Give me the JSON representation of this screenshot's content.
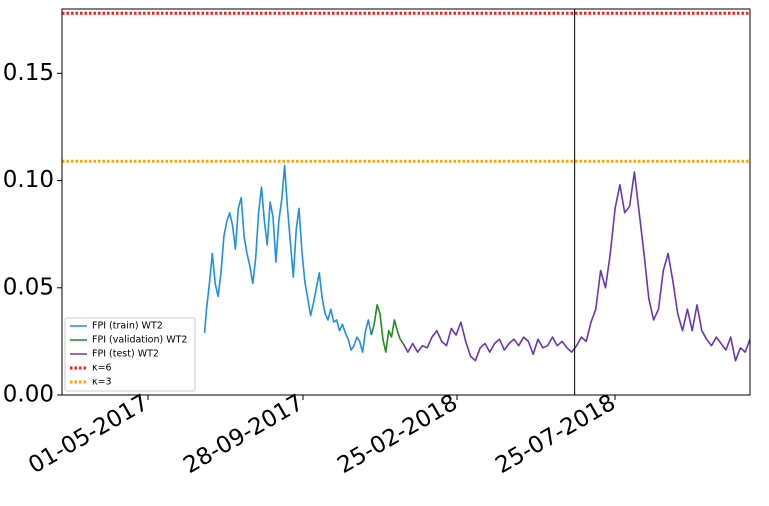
{
  "chart_data": {
    "type": "line",
    "title": "",
    "xlabel": "",
    "ylabel": "",
    "x_tick_labels": [
      "01-05-2017",
      "28-09-2017",
      "25-02-2018",
      "25-07-2018"
    ],
    "y_tick_labels": [
      "0.00",
      "0.05",
      "0.10",
      "0.15"
    ],
    "y_ticks": [
      0.0,
      0.05,
      0.1,
      0.15
    ],
    "ylim": [
      0.0,
      0.18
    ],
    "xlim": [
      "2017-01-08",
      "2018-12-23"
    ],
    "grid": false,
    "legend_position": "bottom-left",
    "vertical_marker": "2018-06-24",
    "series": [
      {
        "name": "FPI (train) WT2",
        "color": "#1f8fe0",
        "style": "solid",
        "x": [
          "2017-06-05",
          "2017-06-07",
          "2017-06-10",
          "2017-06-13",
          "2017-06-16",
          "2017-06-19",
          "2017-06-22",
          "2017-06-25",
          "2017-06-28",
          "2017-07-01",
          "2017-07-04",
          "2017-07-07",
          "2017-07-10",
          "2017-07-13",
          "2017-07-16",
          "2017-07-19",
          "2017-07-22",
          "2017-07-25",
          "2017-07-28",
          "2017-07-31",
          "2017-08-03",
          "2017-08-06",
          "2017-08-09",
          "2017-08-12",
          "2017-08-15",
          "2017-08-18",
          "2017-08-21",
          "2017-08-24",
          "2017-08-27",
          "2017-08-30",
          "2017-09-02",
          "2017-09-05",
          "2017-09-08",
          "2017-09-11",
          "2017-09-14",
          "2017-09-17",
          "2017-09-20",
          "2017-09-23",
          "2017-09-26",
          "2017-09-29",
          "2017-10-02",
          "2017-10-05",
          "2017-10-08",
          "2017-10-11",
          "2017-10-14",
          "2017-10-17",
          "2017-10-20",
          "2017-10-23",
          "2017-10-26",
          "2017-10-29",
          "2017-11-01",
          "2017-11-04",
          "2017-11-07",
          "2017-11-10",
          "2017-11-13",
          "2017-11-16",
          "2017-11-19",
          "2017-11-22",
          "2017-11-25"
        ],
        "y": [
          0.029,
          0.04,
          0.052,
          0.066,
          0.052,
          0.046,
          0.057,
          0.074,
          0.081,
          0.085,
          0.079,
          0.068,
          0.087,
          0.092,
          0.074,
          0.066,
          0.06,
          0.052,
          0.064,
          0.085,
          0.097,
          0.081,
          0.07,
          0.09,
          0.083,
          0.062,
          0.081,
          0.091,
          0.107,
          0.087,
          0.071,
          0.055,
          0.077,
          0.087,
          0.067,
          0.053,
          0.045,
          0.037,
          0.043,
          0.05,
          0.057,
          0.045,
          0.038,
          0.035,
          0.04,
          0.034,
          0.035,
          0.03,
          0.033,
          0.029,
          0.026,
          0.021,
          0.023,
          0.027,
          0.025,
          0.02,
          0.03,
          0.035,
          0.028
        ]
      },
      {
        "name": "FPI (validation) WT2",
        "color": "#228b22",
        "style": "solid",
        "x": [
          "2017-11-25",
          "2017-11-28",
          "2017-12-01",
          "2017-12-04",
          "2017-12-07",
          "2017-12-10",
          "2017-12-13",
          "2017-12-16",
          "2017-12-19",
          "2017-12-22",
          "2017-12-25",
          "2017-12-28"
        ],
        "y": [
          0.028,
          0.033,
          0.042,
          0.038,
          0.026,
          0.02,
          0.03,
          0.027,
          0.035,
          0.03,
          0.026,
          0.024
        ]
      },
      {
        "name": "FPI (test) WT2",
        "color": "#6a35b0",
        "style": "solid",
        "x": [
          "2017-12-28",
          "2018-01-02",
          "2018-01-07",
          "2018-01-12",
          "2018-01-17",
          "2018-01-22",
          "2018-01-27",
          "2018-02-01",
          "2018-02-06",
          "2018-02-11",
          "2018-02-16",
          "2018-02-21",
          "2018-02-26",
          "2018-03-03",
          "2018-03-08",
          "2018-03-13",
          "2018-03-18",
          "2018-03-23",
          "2018-03-28",
          "2018-04-02",
          "2018-04-07",
          "2018-04-12",
          "2018-04-17",
          "2018-04-22",
          "2018-04-27",
          "2018-05-02",
          "2018-05-07",
          "2018-05-12",
          "2018-05-17",
          "2018-05-22",
          "2018-05-27",
          "2018-06-01",
          "2018-06-06",
          "2018-06-11",
          "2018-06-16",
          "2018-06-21",
          "2018-06-26",
          "2018-07-01",
          "2018-07-06",
          "2018-07-11",
          "2018-07-16",
          "2018-07-21",
          "2018-07-26",
          "2018-07-31",
          "2018-08-05",
          "2018-08-10",
          "2018-08-15",
          "2018-08-20",
          "2018-08-25",
          "2018-08-30",
          "2018-09-04",
          "2018-09-09",
          "2018-09-14",
          "2018-09-19",
          "2018-09-24",
          "2018-09-29",
          "2018-10-04",
          "2018-10-09",
          "2018-10-14",
          "2018-10-19",
          "2018-10-24",
          "2018-10-29",
          "2018-11-03",
          "2018-11-08",
          "2018-11-13",
          "2018-11-18",
          "2018-11-23",
          "2018-11-28",
          "2018-12-03",
          "2018-12-08",
          "2018-12-13",
          "2018-12-18",
          "2018-12-23"
        ],
        "y": [
          0.024,
          0.02,
          0.024,
          0.02,
          0.023,
          0.022,
          0.027,
          0.03,
          0.025,
          0.023,
          0.031,
          0.028,
          0.034,
          0.025,
          0.018,
          0.016,
          0.022,
          0.024,
          0.02,
          0.024,
          0.026,
          0.021,
          0.024,
          0.026,
          0.023,
          0.027,
          0.025,
          0.019,
          0.026,
          0.022,
          0.023,
          0.027,
          0.023,
          0.025,
          0.022,
          0.02,
          0.023,
          0.027,
          0.025,
          0.034,
          0.04,
          0.058,
          0.05,
          0.066,
          0.087,
          0.098,
          0.085,
          0.088,
          0.104,
          0.085,
          0.066,
          0.045,
          0.035,
          0.04,
          0.058,
          0.066,
          0.053,
          0.038,
          0.03,
          0.04,
          0.03,
          0.042,
          0.03,
          0.026,
          0.023,
          0.027,
          0.024,
          0.021,
          0.027,
          0.016,
          0.022,
          0.02,
          0.026
        ]
      },
      {
        "name": "κ=6",
        "color": "#ff1a1a",
        "style": "dotted",
        "x": [
          "2017-01-08",
          "2018-12-23"
        ],
        "y": [
          0.178,
          0.178
        ]
      },
      {
        "name": "κ=3",
        "color": "#ffa500",
        "style": "dotted",
        "x": [
          "2017-01-08",
          "2018-12-23"
        ],
        "y": [
          0.109,
          0.109
        ]
      }
    ]
  }
}
